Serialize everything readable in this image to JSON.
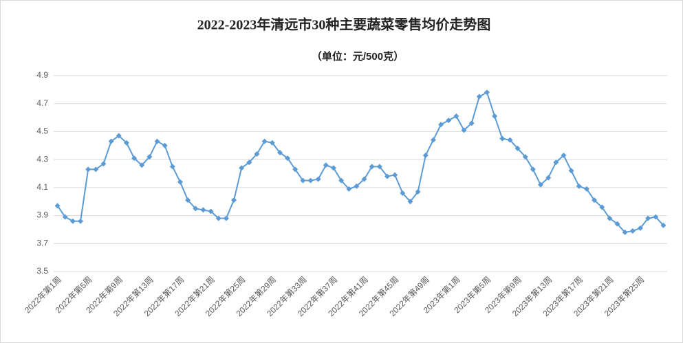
{
  "chart_data": {
    "type": "line",
    "title": "2022-2023年清远市30种主要蔬菜零售均价走势图",
    "subtitle": "（单位：元/500克）",
    "categories": [
      "2022年第1周",
      null,
      null,
      null,
      "2022年第5周",
      null,
      null,
      null,
      "2022年第9周",
      null,
      null,
      null,
      "2022年第13周",
      null,
      null,
      null,
      "2022年第17周",
      null,
      null,
      null,
      "2022年第21周",
      null,
      null,
      null,
      "2022年第25周",
      null,
      null,
      null,
      "2022年第29周",
      null,
      null,
      null,
      "2022年第33周",
      null,
      null,
      null,
      "2022年第37周",
      null,
      null,
      null,
      "2022年第41周",
      null,
      null,
      null,
      "2022年第45周",
      null,
      null,
      null,
      "2022年第49周",
      null,
      null,
      null,
      "2023年第1周",
      null,
      null,
      null,
      "2023年第5周",
      null,
      null,
      null,
      "2023年第9周",
      null,
      null,
      null,
      "2023年第13周",
      null,
      null,
      null,
      "2023年第17周",
      null,
      null,
      null,
      "2023年第21周",
      null,
      null,
      null,
      "2023年第25周",
      null,
      null,
      null
    ],
    "series": [
      {
        "name": "30种主要蔬菜零售均价",
        "color": "#5b9bd5",
        "values": [
          3.97,
          3.89,
          3.86,
          3.86,
          4.23,
          4.23,
          4.27,
          4.43,
          4.47,
          4.42,
          4.31,
          4.26,
          4.32,
          4.43,
          4.4,
          4.25,
          4.14,
          4.01,
          3.95,
          3.94,
          3.93,
          3.88,
          3.88,
          4.01,
          4.24,
          4.28,
          4.34,
          4.43,
          4.42,
          4.35,
          4.31,
          4.23,
          4.15,
          4.15,
          4.16,
          4.26,
          4.24,
          4.15,
          4.09,
          4.11,
          4.16,
          4.25,
          4.25,
          4.18,
          4.19,
          4.06,
          4.0,
          4.07,
          4.33,
          4.44,
          4.55,
          4.58,
          4.61,
          4.51,
          4.56,
          4.75,
          4.78,
          4.61,
          4.45,
          4.44,
          4.38,
          4.32,
          4.23,
          4.12,
          4.17,
          4.28,
          4.33,
          4.22,
          4.11,
          4.09,
          4.01,
          3.96,
          3.88,
          3.84,
          3.78,
          3.79,
          3.81,
          3.88,
          3.89,
          3.83
        ]
      }
    ],
    "ylim": [
      3.5,
      4.9
    ],
    "yticks": [
      3.5,
      3.7,
      3.9,
      4.1,
      4.3,
      4.5,
      4.7,
      4.9
    ],
    "grid": true
  }
}
